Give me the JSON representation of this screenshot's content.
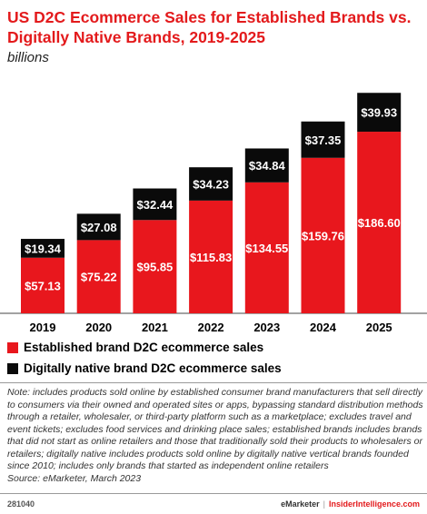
{
  "title": "US D2C Ecommerce Sales for Established Brands vs. Digitally Native Brands, 2019-2025",
  "subtitle": "billions",
  "colors": {
    "established": "#e8171d",
    "native": "#0a0a0a",
    "title": "#e31a1c"
  },
  "chart_data": {
    "type": "bar",
    "stacked": true,
    "categories": [
      "2019",
      "2020",
      "2021",
      "2022",
      "2023",
      "2024",
      "2025"
    ],
    "series": [
      {
        "name": "Established brand D2C ecommerce sales",
        "values": [
          57.13,
          75.22,
          95.85,
          115.83,
          134.55,
          159.76,
          186.6
        ],
        "labels": [
          "$57.13",
          "$75.22",
          "$95.85",
          "$115.83",
          "$134.55",
          "$159.76",
          "$186.60"
        ]
      },
      {
        "name": "Digitally native brand D2C ecommerce sales",
        "values": [
          19.34,
          27.08,
          32.44,
          34.23,
          34.84,
          37.35,
          39.93
        ],
        "labels": [
          "$19.34",
          "$27.08",
          "$32.44",
          "$34.23",
          "$34.84",
          "$37.35",
          "$39.93"
        ]
      }
    ],
    "legend_position": "bottom-left"
  },
  "legend": [
    {
      "label": "Established brand D2C ecommerce sales",
      "color": "#e8171d"
    },
    {
      "label": "Digitally native brand D2C ecommerce sales",
      "color": "#0a0a0a"
    }
  ],
  "note": "Note: includes products sold online by established consumer brand manufacturers that sell directly to consumers via their owned and operated sites or apps, bypassing standard distribution methods through a retailer, wholesaler, or third-party platform such as a marketplace; excludes travel and event tickets; excludes food services and drinking place sales; established brands includes brands that did not start as online retailers and those that traditionally sold their products to wholesalers or retailers; digitally native includes products sold online by digitally native vertical brands founded since 2010; includes only brands that started as independent online retailers",
  "source": "Source: eMarketer, March 2023",
  "footer": {
    "chart_id": "281040",
    "brand1": "eMarketer",
    "separator": "|",
    "brand2": "InsiderIntelligence.com"
  }
}
